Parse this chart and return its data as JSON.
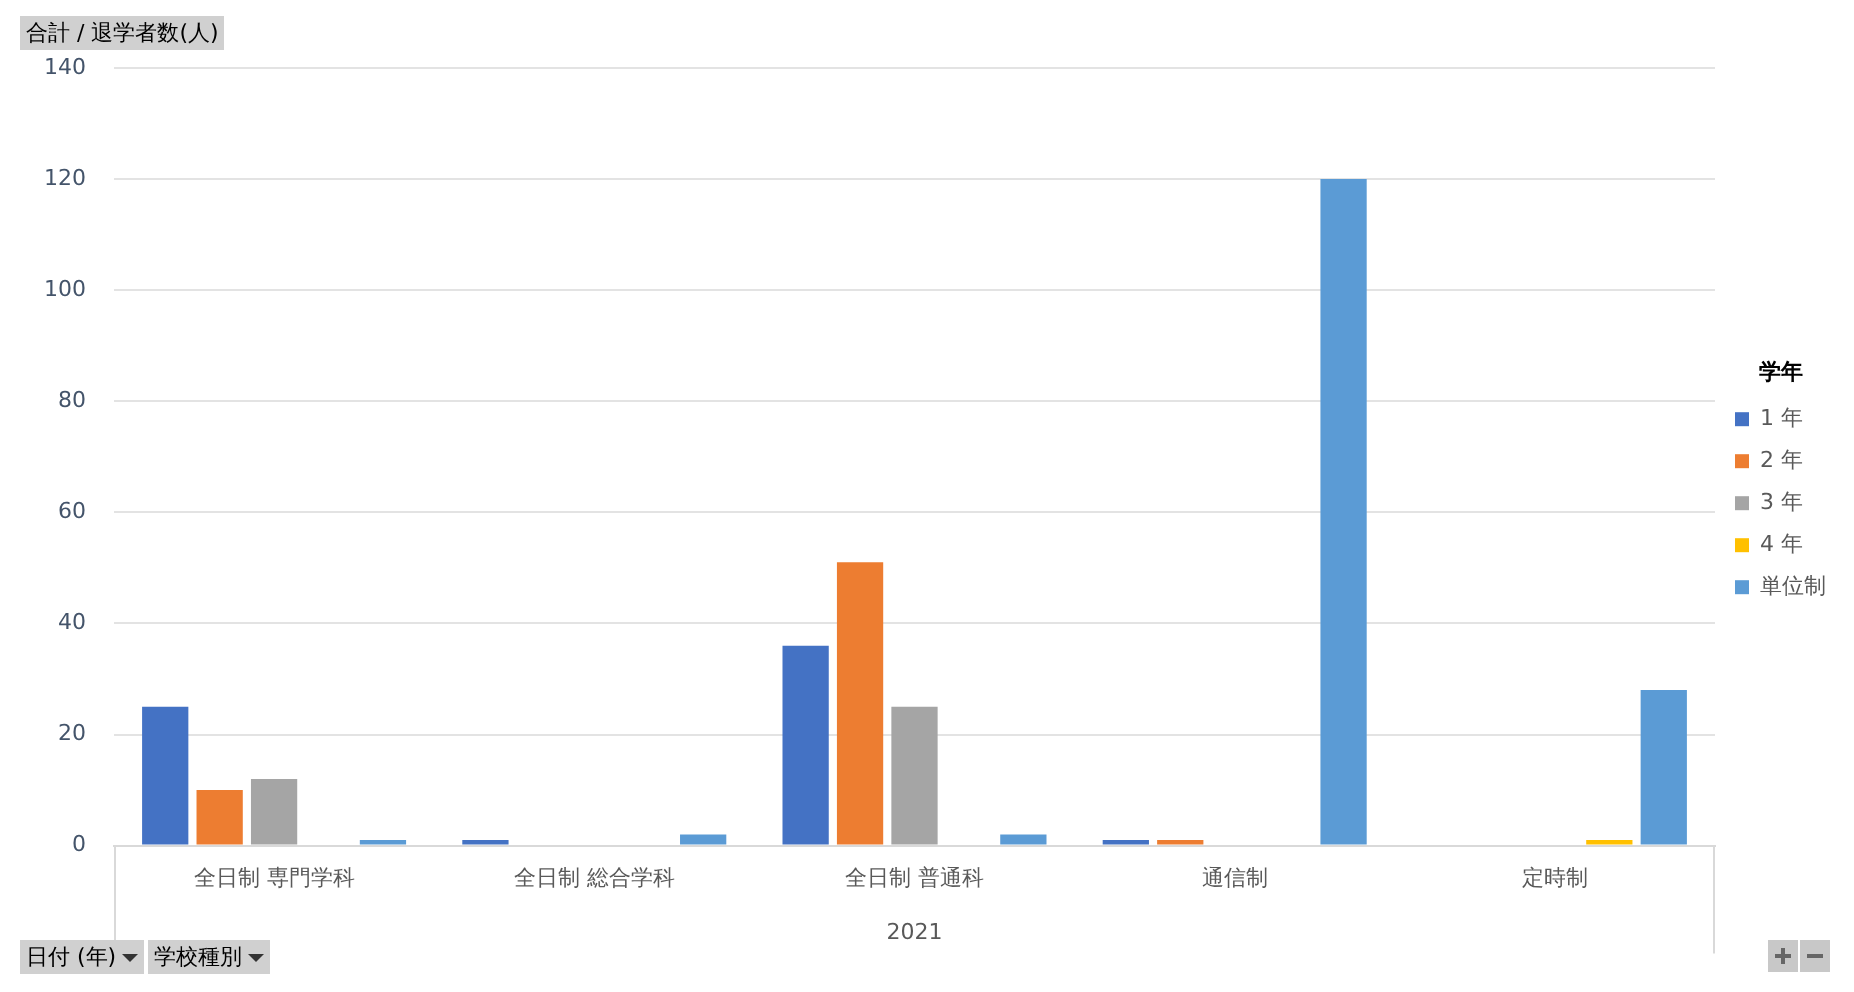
{
  "chart_data": {
    "type": "bar",
    "ylabel": "合計 / 退学者数(人)",
    "legend_title": "学年",
    "categories": [
      "全日制 専門学科",
      "全日制 総合学科",
      "全日制 普通科",
      "通信制",
      "定時制"
    ],
    "series": [
      {
        "name": "1 年",
        "color": "#4472c4",
        "values": [
          25,
          1,
          36,
          1,
          null
        ]
      },
      {
        "name": "2 年",
        "color": "#ed7d31",
        "values": [
          10,
          null,
          51,
          1,
          null
        ]
      },
      {
        "name": "3 年",
        "color": "#a5a5a5",
        "values": [
          12,
          null,
          25,
          null,
          null
        ]
      },
      {
        "name": "4 年",
        "color": "#ffc000",
        "values": [
          null,
          null,
          null,
          null,
          1
        ]
      },
      {
        "name": "単位制",
        "color": "#5b9bd5",
        "values": [
          1,
          2,
          2,
          120,
          28
        ]
      }
    ],
    "ylim": [
      0,
      140
    ],
    "yticks": [
      0,
      20,
      40,
      60,
      80,
      100,
      120,
      140
    ],
    "grid": "y",
    "legend": "right",
    "annotations": [
      "2021",
      "日付 (年)",
      "学校種別"
    ]
  }
}
